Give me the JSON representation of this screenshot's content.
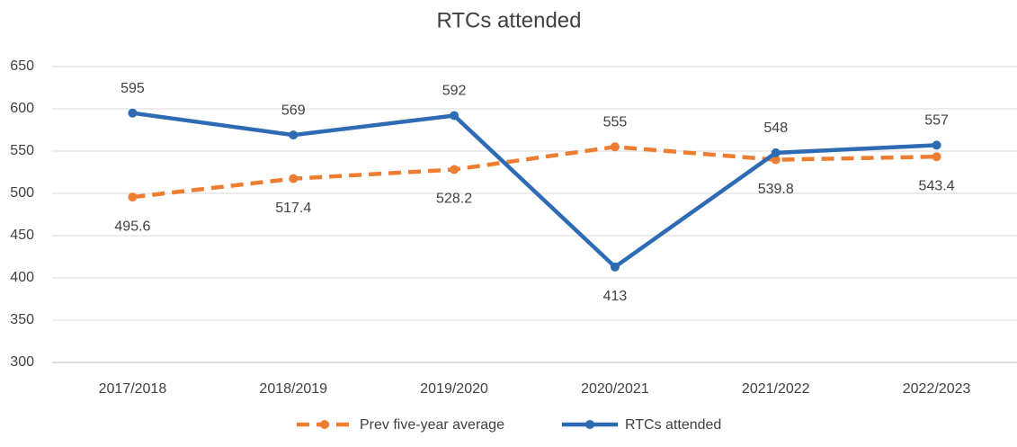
{
  "chart_data": {
    "type": "line",
    "title": "RTCs attended",
    "categories": [
      "2017/2018",
      "2018/2019",
      "2019/2020",
      "2020/2021",
      "2021/2022",
      "2022/2023"
    ],
    "series": [
      {
        "name": "Prev five-year average",
        "color": "#ed7d31",
        "dashed": true,
        "values": [
          495.6,
          517.4,
          528.2,
          555,
          539.8,
          543.4
        ]
      },
      {
        "name": "RTCs attended",
        "color": "#2e6bb5",
        "dashed": false,
        "values": [
          595,
          569,
          592,
          413,
          548,
          557
        ]
      }
    ],
    "ylim": [
      300,
      650
    ],
    "yticks": [
      300,
      350,
      400,
      450,
      500,
      550,
      600,
      650
    ],
    "grid": true,
    "legend": "bottom"
  }
}
